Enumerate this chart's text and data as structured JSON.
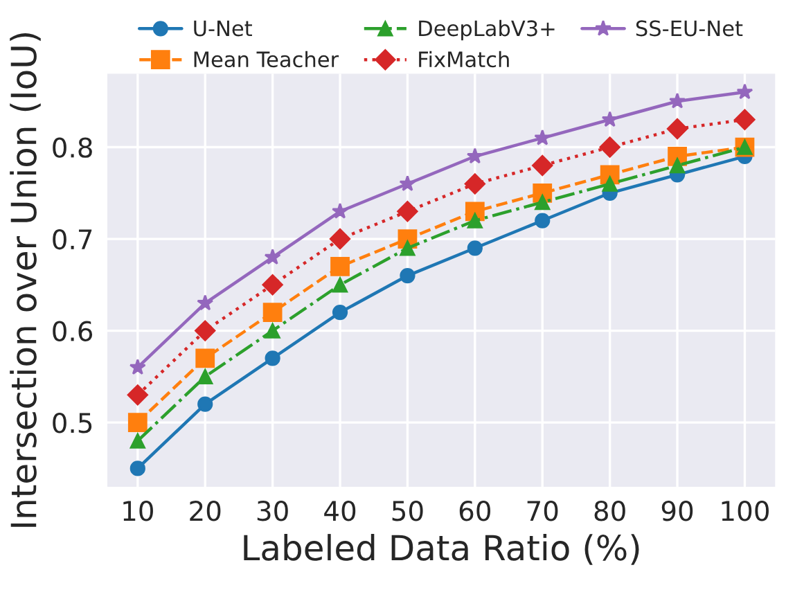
{
  "chart_data": {
    "type": "line",
    "xlabel": "Labeled Data Ratio (%)",
    "ylabel": "Intersection over Union (IoU)",
    "x": [
      10,
      20,
      30,
      40,
      50,
      60,
      70,
      80,
      90,
      100
    ],
    "xlim": [
      5.5,
      104.5
    ],
    "xticks": [
      10,
      20,
      30,
      40,
      50,
      60,
      70,
      80,
      90,
      100
    ],
    "ylim": [
      0.43,
      0.88
    ],
    "yticks": [
      0.5,
      0.6,
      0.7,
      0.8
    ],
    "grid": true,
    "legend": "top",
    "series": [
      {
        "name": "U-Net",
        "color": "#1f77b4",
        "marker": "circle",
        "line_style": "solid",
        "values": [
          0.45,
          0.52,
          0.57,
          0.62,
          0.66,
          0.69,
          0.72,
          0.75,
          0.77,
          0.79
        ]
      },
      {
        "name": "Mean Teacher",
        "color": "#ff7f0e",
        "marker": "square",
        "line_style": "dashed",
        "values": [
          0.5,
          0.57,
          0.62,
          0.67,
          0.7,
          0.73,
          0.75,
          0.77,
          0.79,
          0.8
        ]
      },
      {
        "name": "DeepLabV3+",
        "color": "#2ca02c",
        "marker": "triangle",
        "line_style": "dashdot",
        "values": [
          0.48,
          0.55,
          0.6,
          0.65,
          0.69,
          0.72,
          0.74,
          0.76,
          0.78,
          0.8
        ]
      },
      {
        "name": "FixMatch",
        "color": "#d62728",
        "marker": "diamond",
        "line_style": "dotted",
        "values": [
          0.53,
          0.6,
          0.65,
          0.7,
          0.73,
          0.76,
          0.78,
          0.8,
          0.82,
          0.83
        ]
      },
      {
        "name": "SS-EU-Net",
        "color": "#9467bd",
        "marker": "star",
        "line_style": "solid",
        "values": [
          0.56,
          0.63,
          0.68,
          0.73,
          0.76,
          0.79,
          0.81,
          0.83,
          0.85,
          0.86
        ]
      }
    ]
  }
}
